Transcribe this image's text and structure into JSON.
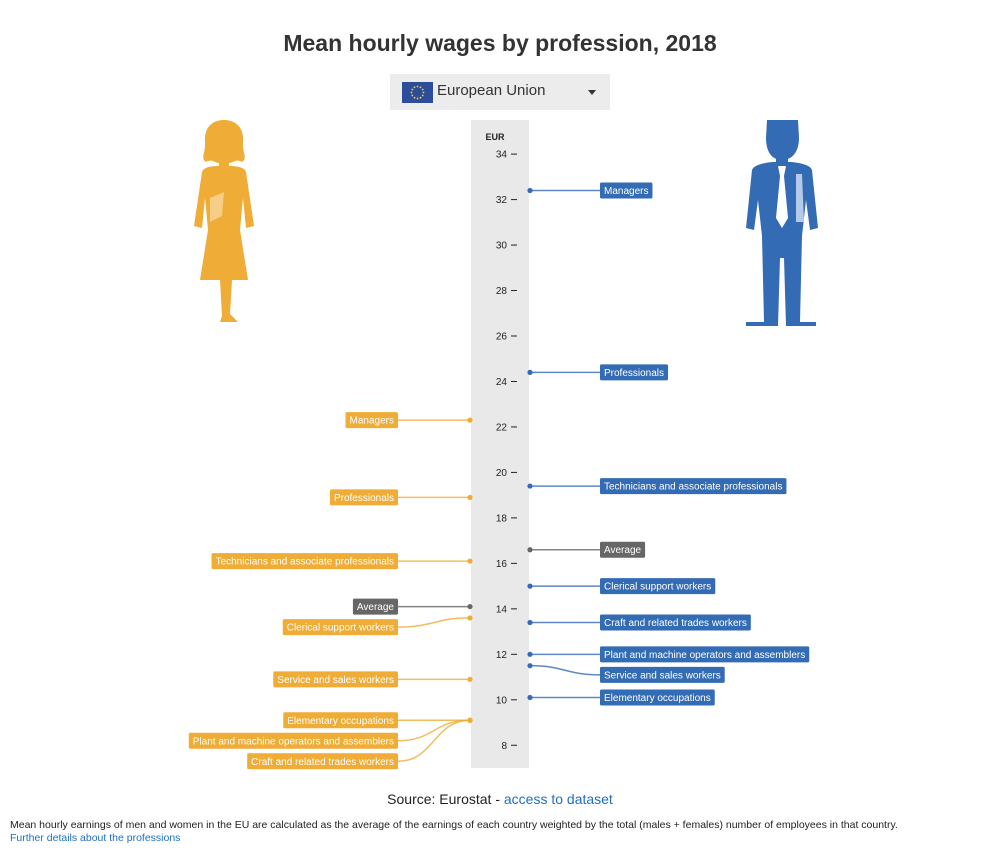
{
  "page": {
    "title": "Mean hourly wages by profession, 2018",
    "selector": {
      "selected": "European Union",
      "flag_icon": "eu-flag-icon"
    },
    "source": {
      "prefix": "Source: Eurostat - ",
      "link": "access to dataset"
    },
    "note": "Mean hourly earnings of men and women in the EU are calculated as the average of the earnings of each country weighted by the total (males + females) number of employees in that country.",
    "note_link": "Further details about the professions"
  },
  "colors": {
    "women": "#efac36",
    "men": "#336cb4",
    "average": "#666666",
    "axis_bg": "#e9e9e9"
  },
  "icons": {
    "women": "woman-figure-icon",
    "men": "man-figure-icon"
  },
  "chart_data": {
    "type": "scatter",
    "ylabel": "EUR",
    "ylim": [
      7,
      35.5
    ],
    "yticks": [
      8,
      10,
      12,
      14,
      16,
      18,
      20,
      22,
      24,
      26,
      28,
      30,
      32,
      34
    ],
    "grid": false,
    "series": [
      {
        "key": "women",
        "side": "left",
        "points": [
          {
            "label": "Managers",
            "value": 22.3
          },
          {
            "label": "Professionals",
            "value": 18.9
          },
          {
            "label": "Technicians and associate professionals",
            "value": 16.1
          },
          {
            "label": "Average",
            "value": 14.1,
            "average": true
          },
          {
            "label": "Clerical support workers",
            "value": 13.6
          },
          {
            "label": "Service and sales workers",
            "value": 10.9
          },
          {
            "label": "Elementary occupations",
            "value": 9.1
          },
          {
            "label": "Plant and machine operators and assemblers",
            "value": 9.1
          },
          {
            "label": "Craft and related trades workers",
            "value": 9.1
          }
        ]
      },
      {
        "key": "men",
        "side": "right",
        "points": [
          {
            "label": "Managers",
            "value": 32.4
          },
          {
            "label": "Professionals",
            "value": 24.4
          },
          {
            "label": "Technicians and associate professionals",
            "value": 19.4
          },
          {
            "label": "Average",
            "value": 16.6,
            "average": true
          },
          {
            "label": "Clerical support workers",
            "value": 15.0
          },
          {
            "label": "Craft and related trades workers",
            "value": 13.4
          },
          {
            "label": "Plant and machine operators and assemblers",
            "value": 12.0
          },
          {
            "label": "Service and sales workers",
            "value": 11.5
          },
          {
            "label": "Elementary occupations",
            "value": 10.1
          }
        ]
      }
    ]
  }
}
